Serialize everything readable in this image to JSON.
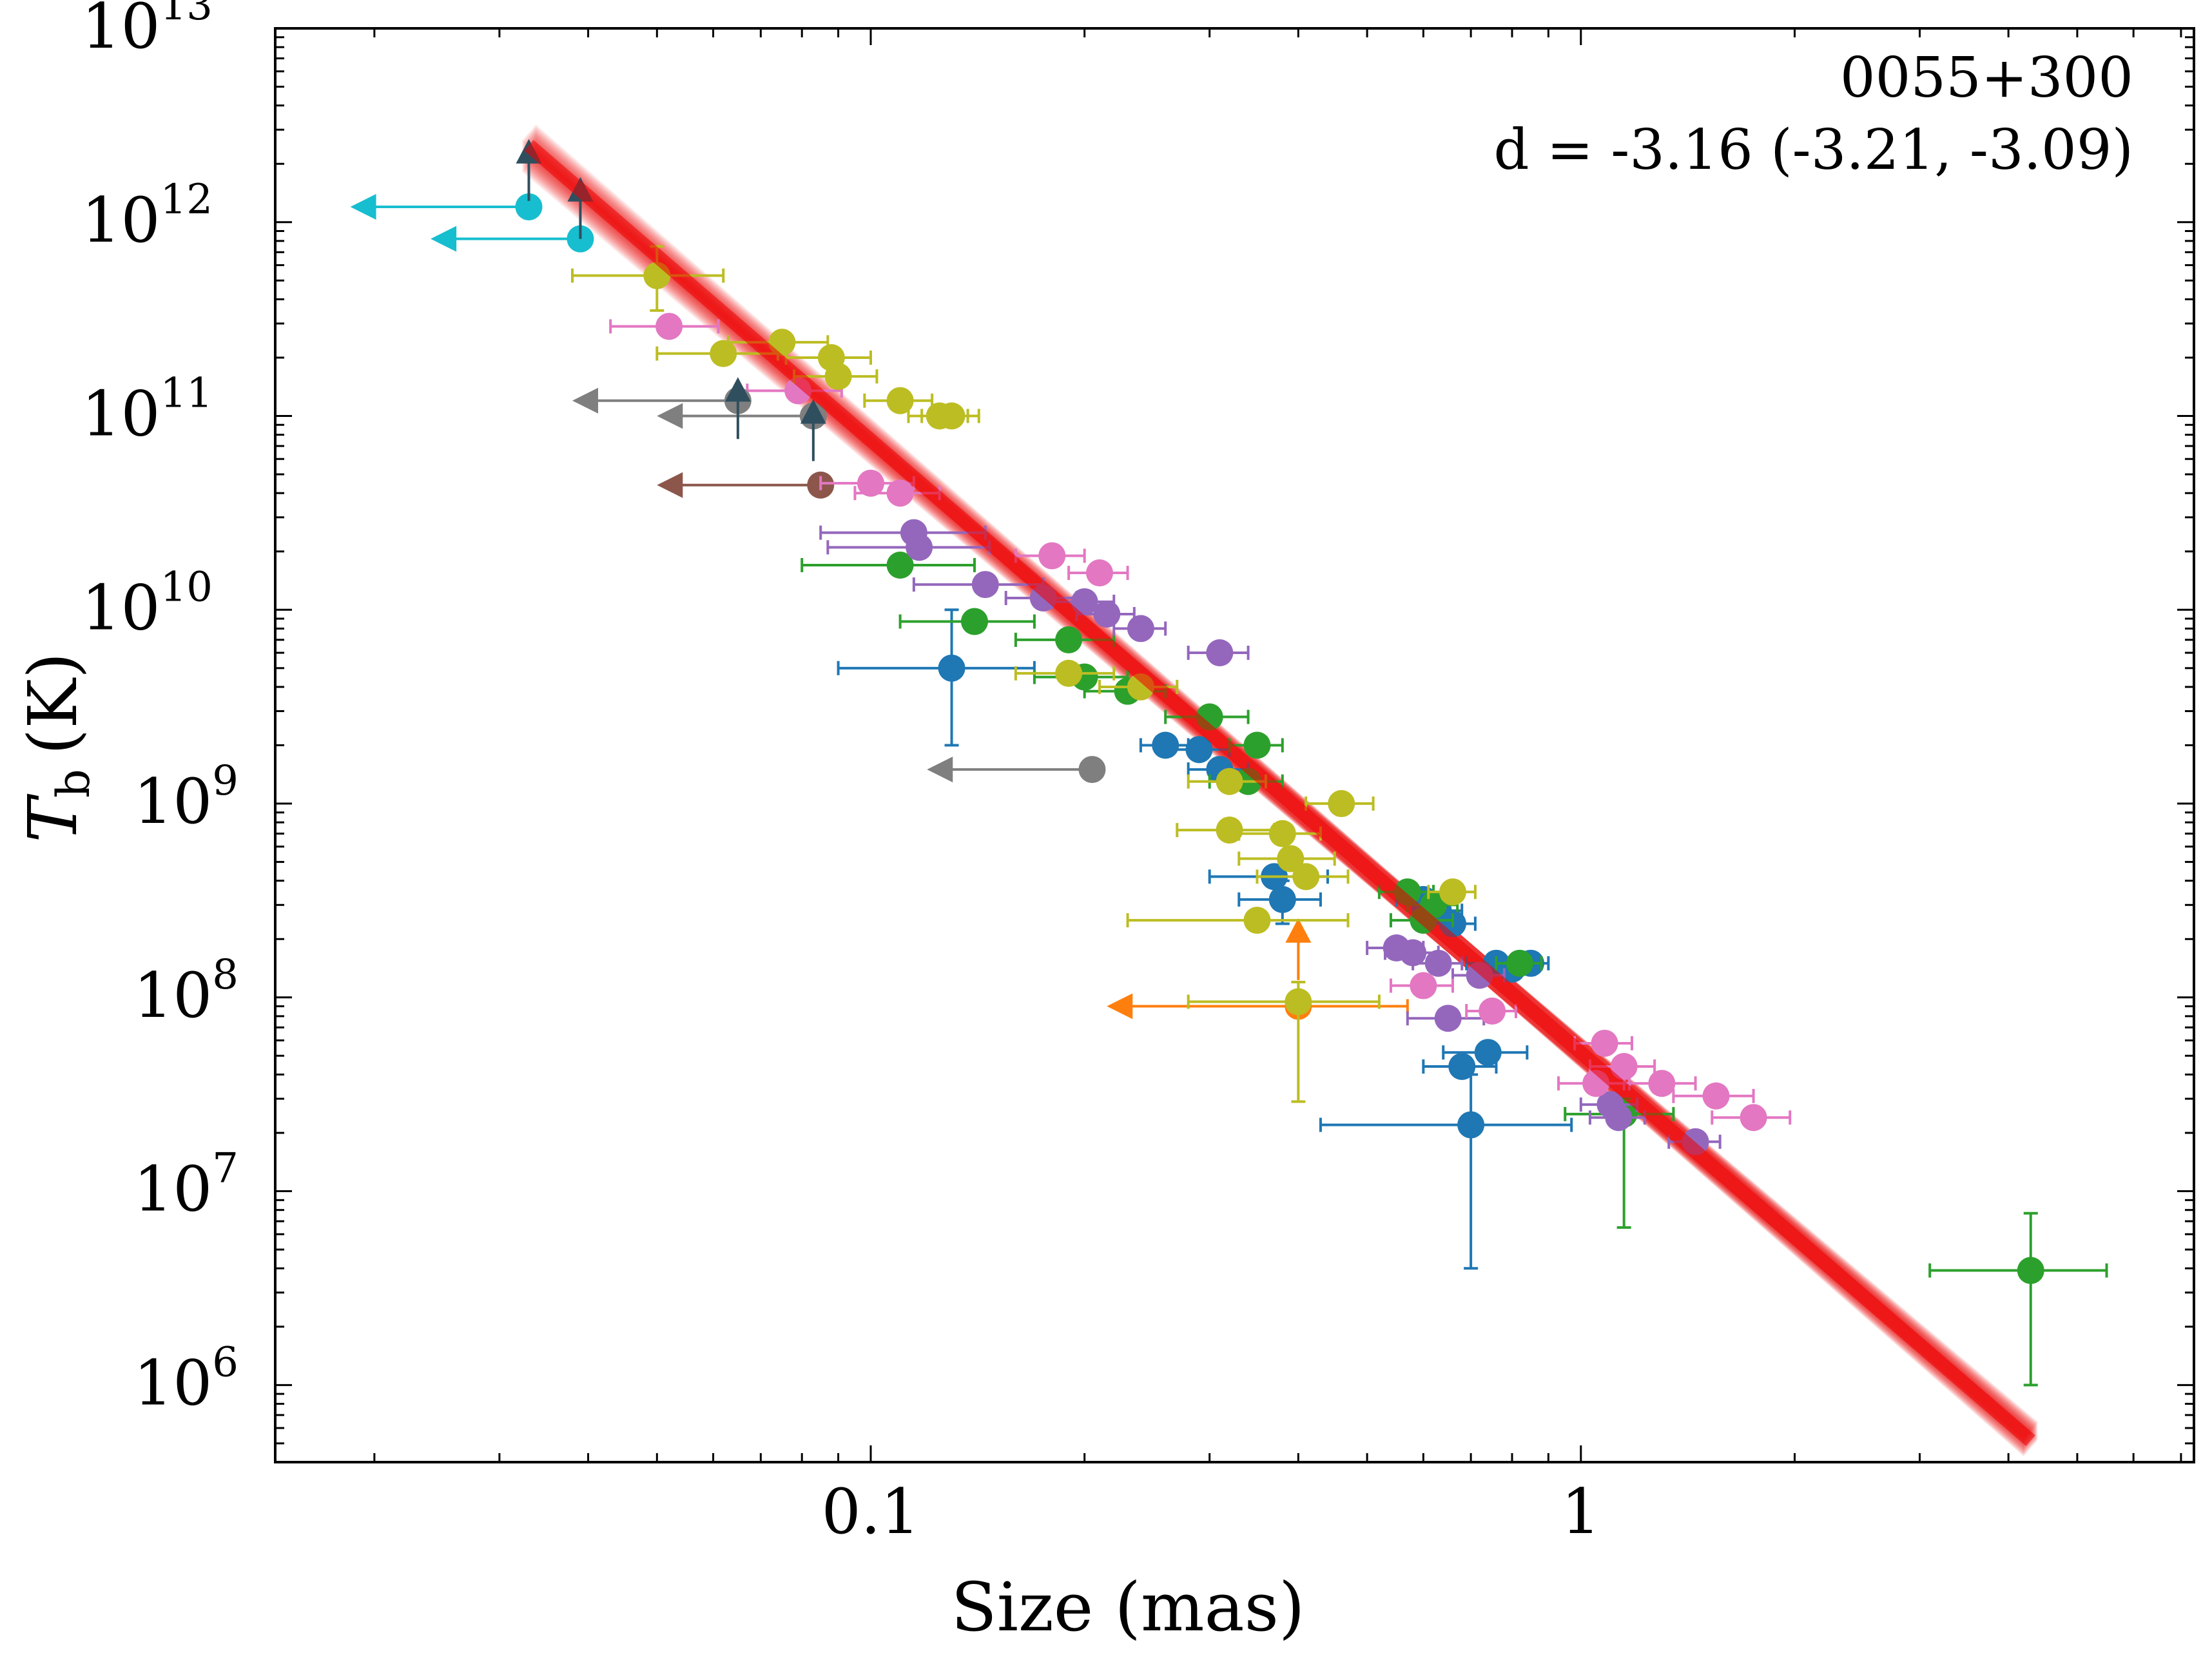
{
  "chart_data": {
    "type": "scatter",
    "title": "",
    "xlabel": "Size (mas)",
    "ylabel_main": "T",
    "ylabel_sub": "b",
    "ylabel_unit": "(K)",
    "xscale": "log",
    "yscale": "log",
    "xlim": [
      0.0145,
      7.3
    ],
    "ylim": [
      400000,
      10000000000000
    ],
    "x_ticks": [
      {
        "value": 0.1,
        "label": "0.1"
      },
      {
        "value": 1,
        "label": "1"
      }
    ],
    "y_ticks": [
      {
        "value": 1000000,
        "base": "10",
        "exp": "6"
      },
      {
        "value": 10000000,
        "base": "10",
        "exp": "7"
      },
      {
        "value": 100000000,
        "base": "10",
        "exp": "8"
      },
      {
        "value": 1000000000,
        "base": "10",
        "exp": "9"
      },
      {
        "value": 10000000000,
        "base": "10",
        "exp": "10"
      },
      {
        "value": 100000000000,
        "base": "10",
        "exp": "11"
      },
      {
        "value": 1000000000000,
        "base": "10",
        "exp": "12"
      },
      {
        "value": 10000000000000,
        "base": "10",
        "exp": "13"
      }
    ],
    "annotation": {
      "source": "0055+300",
      "fit_text": "d = -3.16 (-3.21, -3.09)",
      "position": "top-right"
    },
    "fit": {
      "color": "#ee0000",
      "slope": -3.16,
      "slope_low": -3.21,
      "slope_high": -3.09,
      "x_range": [
        0.033,
        4.3
      ],
      "anchor_x": 0.7,
      "anchor_y": 160000000
    },
    "series": [
      {
        "name": "blue",
        "color": "#1f77b4",
        "points": [
          {
            "x": 0.13,
            "y": 5000000000,
            "xerr": 0.04,
            "ylo": 2000000000,
            "yhi": 10000000000
          },
          {
            "x": 0.26,
            "y": 2000000000,
            "xerr": 0.02
          },
          {
            "x": 0.29,
            "y": 1900000000,
            "xerr": 0.03
          },
          {
            "x": 0.31,
            "y": 1500000000,
            "xerr": 0.03
          },
          {
            "x": 0.37,
            "y": 420000000,
            "xerr": 0.07
          },
          {
            "x": 0.38,
            "y": 320000000,
            "xerr": 0.05,
            "ylo": 240000000,
            "yhi": 400000000
          },
          {
            "x": 0.6,
            "y": 320000000,
            "xerr": 0.05
          },
          {
            "x": 0.63,
            "y": 280000000,
            "xerr": 0.05
          },
          {
            "x": 0.66,
            "y": 240000000,
            "xerr": 0.05
          },
          {
            "x": 0.68,
            "y": 44000000,
            "xerr": 0.08
          },
          {
            "x": 0.7,
            "y": 22000000,
            "xerr": 0.27,
            "ylo": 4000000,
            "yhi": 40000000
          },
          {
            "x": 0.74,
            "y": 52000000,
            "xerr": 0.1
          },
          {
            "x": 0.76,
            "y": 150000000,
            "xerr": 0.07
          },
          {
            "x": 0.8,
            "y": 140000000,
            "xerr": 0.06
          },
          {
            "x": 0.85,
            "y": 150000000,
            "xerr": 0.05
          }
        ]
      },
      {
        "name": "orange",
        "color": "#ff7f0e",
        "points": [
          {
            "x": 0.4,
            "y": 90000000,
            "xerr": 0.17,
            "upper_x": true,
            "arrow_to": 0.215
          },
          {
            "x": 0.4,
            "y": 210000000,
            "lower_y": true
          }
        ]
      },
      {
        "name": "green",
        "color": "#2ca02c",
        "points": [
          {
            "x": 0.11,
            "y": 17000000000,
            "xerr": 0.03
          },
          {
            "x": 0.14,
            "y": 8700000000,
            "xerr": 0.03
          },
          {
            "x": 0.19,
            "y": 7000000000,
            "xerr": 0.03
          },
          {
            "x": 0.2,
            "y": 4500000000,
            "xerr": 0.03
          },
          {
            "x": 0.23,
            "y": 3800000000,
            "xerr": 0.03
          },
          {
            "x": 0.3,
            "y": 2800000000,
            "xerr": 0.04
          },
          {
            "x": 0.35,
            "y": 2000000000,
            "xerr": 0.03
          },
          {
            "x": 0.34,
            "y": 1300000000,
            "xerr": 0.04
          },
          {
            "x": 0.57,
            "y": 350000000,
            "xerr": 0.05
          },
          {
            "x": 0.6,
            "y": 250000000,
            "xerr": 0.06
          },
          {
            "x": 0.62,
            "y": 300000000,
            "xerr": 0.05
          },
          {
            "x": 0.82,
            "y": 150000000,
            "xerr": 0.06
          },
          {
            "x": 1.15,
            "y": 25000000,
            "xerr": 0.2,
            "ylo": 6500000,
            "yhi": 30000000
          },
          {
            "x": 4.3,
            "y": 3900000,
            "xerr": 1.2,
            "ylo": 1000000,
            "yhi": 7700000
          }
        ]
      },
      {
        "name": "purple",
        "color": "#9467bd",
        "points": [
          {
            "x": 0.115,
            "y": 25000000000,
            "xerr": 0.03
          },
          {
            "x": 0.117,
            "y": 21000000000,
            "xerr": 0.03
          },
          {
            "x": 0.145,
            "y": 13500000000,
            "xerr": 0.03
          },
          {
            "x": 0.175,
            "y": 11500000000,
            "xerr": 0.02
          },
          {
            "x": 0.2,
            "y": 11000000000,
            "xerr": 0.02
          },
          {
            "x": 0.215,
            "y": 9500000000,
            "xerr": 0.02
          },
          {
            "x": 0.24,
            "y": 8000000000,
            "xerr": 0.02
          },
          {
            "x": 0.31,
            "y": 6000000000,
            "xerr": 0.03
          },
          {
            "x": 0.55,
            "y": 180000000,
            "xerr": 0.05
          },
          {
            "x": 0.58,
            "y": 170000000,
            "xerr": 0.05
          },
          {
            "x": 0.63,
            "y": 150000000,
            "xerr": 0.05
          },
          {
            "x": 0.65,
            "y": 78000000,
            "xerr": 0.08
          },
          {
            "x": 0.72,
            "y": 130000000,
            "xerr": 0.06
          },
          {
            "x": 1.1,
            "y": 28000000,
            "xerr": 0.1
          },
          {
            "x": 1.13,
            "y": 24000000,
            "xerr": 0.1
          },
          {
            "x": 1.45,
            "y": 18000000,
            "xerr": 0.12
          }
        ]
      },
      {
        "name": "brown",
        "color": "#8c564b",
        "points": [
          {
            "x": 0.085,
            "y": 44000000000,
            "upper_x": true,
            "arrow_to": 0.05
          }
        ]
      },
      {
        "name": "pink",
        "color": "#e377c2",
        "points": [
          {
            "x": 0.052,
            "y": 290000000000,
            "xerr": 0.009
          },
          {
            "x": 0.079,
            "y": 135000000000,
            "xerr": 0.012
          },
          {
            "x": 0.1,
            "y": 45000000000,
            "xerr": 0.015
          },
          {
            "x": 0.11,
            "y": 40000000000,
            "xerr": 0.015
          },
          {
            "x": 0.18,
            "y": 19000000000,
            "xerr": 0.02
          },
          {
            "x": 0.21,
            "y": 15500000000,
            "xerr": 0.02
          },
          {
            "x": 0.6,
            "y": 115000000,
            "xerr": 0.06
          },
          {
            "x": 0.75,
            "y": 85000000,
            "xerr": 0.06
          },
          {
            "x": 1.08,
            "y": 58000000,
            "xerr": 0.1
          },
          {
            "x": 1.15,
            "y": 44000000,
            "xerr": 0.12
          },
          {
            "x": 1.3,
            "y": 36000000,
            "xerr": 0.15
          },
          {
            "x": 1.55,
            "y": 31000000,
            "xerr": 0.2
          },
          {
            "x": 1.75,
            "y": 24000000,
            "xerr": 0.22
          },
          {
            "x": 1.05,
            "y": 36000000,
            "xerr": 0.12
          }
        ]
      },
      {
        "name": "gray",
        "color": "#7f7f7f",
        "points": [
          {
            "x": 0.065,
            "y": 120000000000,
            "upper_x": true,
            "arrow_to": 0.038
          },
          {
            "x": 0.083,
            "y": 100000000000,
            "upper_x": true,
            "arrow_to": 0.05
          },
          {
            "x": 0.205,
            "y": 1500000000,
            "upper_x": true,
            "arrow_to": 0.12
          }
        ]
      },
      {
        "name": "olive",
        "color": "#bcbd22",
        "points": [
          {
            "x": 0.05,
            "y": 530000000000,
            "xerr": 0.012,
            "ylo": 350000000000,
            "yhi": 750000000000
          },
          {
            "x": 0.062,
            "y": 210000000000,
            "xerr": 0.012
          },
          {
            "x": 0.075,
            "y": 240000000000,
            "xerr": 0.012
          },
          {
            "x": 0.088,
            "y": 200000000000,
            "xerr": 0.012
          },
          {
            "x": 0.09,
            "y": 160000000000,
            "xerr": 0.012
          },
          {
            "x": 0.11,
            "y": 120000000000,
            "xerr": 0.012
          },
          {
            "x": 0.125,
            "y": 100000000000,
            "xerr": 0.012
          },
          {
            "x": 0.13,
            "y": 100000000000,
            "xerr": 0.012
          },
          {
            "x": 0.19,
            "y": 4700000000,
            "xerr": 0.03
          },
          {
            "x": 0.24,
            "y": 4000000000,
            "xerr": 0.03
          },
          {
            "x": 0.32,
            "y": 1300000000,
            "xerr": 0.04
          },
          {
            "x": 0.32,
            "y": 730000000,
            "xerr": 0.05
          },
          {
            "x": 0.38,
            "y": 700000000,
            "xerr": 0.05
          },
          {
            "x": 0.39,
            "y": 520000000,
            "xerr": 0.06
          },
          {
            "x": 0.41,
            "y": 420000000,
            "xerr": 0.06
          },
          {
            "x": 0.46,
            "y": 1000000000,
            "xerr": 0.05
          },
          {
            "x": 0.35,
            "y": 250000000,
            "xerr": 0.12
          },
          {
            "x": 0.4,
            "y": 95000000,
            "xerr": 0.12,
            "ylo": 29000000,
            "yhi": 120000000
          },
          {
            "x": 0.66,
            "y": 350000000,
            "xerr": 0.05
          }
        ]
      },
      {
        "name": "cyan",
        "color": "#17becf",
        "points": [
          {
            "x": 0.033,
            "y": 1200000000000,
            "upper_x": true,
            "arrow_to": 0.0185
          },
          {
            "x": 0.039,
            "y": 820000000000,
            "upper_x": true,
            "arrow_to": 0.024
          }
        ]
      },
      {
        "name": "darkslate",
        "color": "#2f4f5f",
        "points": [
          {
            "x": 0.033,
            "y": 2200000000000,
            "lower_y": true
          },
          {
            "x": 0.039,
            "y": 1400000000000,
            "lower_y": true
          },
          {
            "x": 0.065,
            "y": 130000000000,
            "lower_y": true
          },
          {
            "x": 0.083,
            "y": 100000000000,
            "lower_y": true
          }
        ]
      }
    ]
  }
}
